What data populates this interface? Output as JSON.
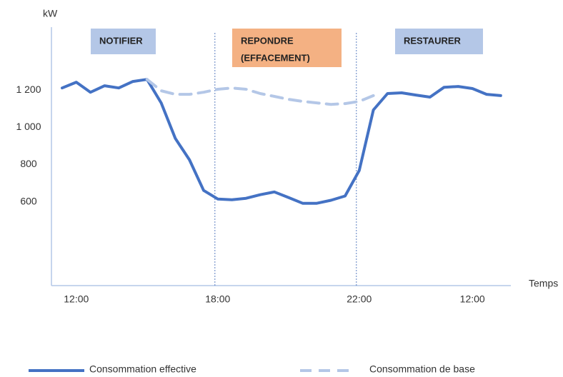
{
  "chart_data": {
    "type": "line",
    "y_label": "kW",
    "x_label": "Temps",
    "categories": [
      null,
      "12:00",
      null,
      null,
      null,
      null,
      null,
      null,
      null,
      null,
      null,
      "18:00",
      null,
      null,
      null,
      null,
      null,
      null,
      null,
      null,
      null,
      "22:00",
      null,
      null,
      null,
      null,
      null,
      null,
      null,
      "12:00",
      null,
      null
    ],
    "series": [
      {
        "name": "Consommation effective",
        "color": "#4472c4",
        "dashed": false,
        "values": [
          1211,
          1242,
          1188,
          1223,
          1211,
          1246,
          1257,
          1131,
          940,
          825,
          661,
          615,
          611,
          619,
          638,
          653,
          623,
          592,
          592,
          608,
          631,
          768,
          1093,
          1181,
          1185,
          1173,
          1162,
          1215,
          1219,
          1208,
          1177,
          1170
        ]
      },
      {
        "name": "Consommation de base",
        "color": "#b4c7e7",
        "dashed": true,
        "values": [
          null,
          null,
          null,
          null,
          null,
          null,
          1257,
          1196,
          1177,
          1177,
          1188,
          1204,
          1211,
          1204,
          1181,
          1166,
          1150,
          1139,
          1131,
          1123,
          1127,
          1139,
          1170,
          null,
          null,
          null,
          null,
          null,
          null,
          null,
          null,
          null
        ]
      }
    ],
    "ylim": [
      150,
      1530
    ],
    "yticks": [
      600,
      800,
      {
        "value": 1000,
        "label": "1 000"
      },
      {
        "value": 1200,
        "label": "1 200"
      }
    ],
    "phases": [
      {
        "lines": [
          "NOTIFIER"
        ],
        "color": "#b4c7e7"
      },
      {
        "lines": [
          "REPONDRE",
          "(EFFACEMENT)"
        ],
        "color": "#f4b183"
      },
      {
        "lines": [
          "RESTAURER"
        ],
        "color": "#b4c7e7"
      }
    ],
    "dividers": [
      11,
      21
    ]
  }
}
